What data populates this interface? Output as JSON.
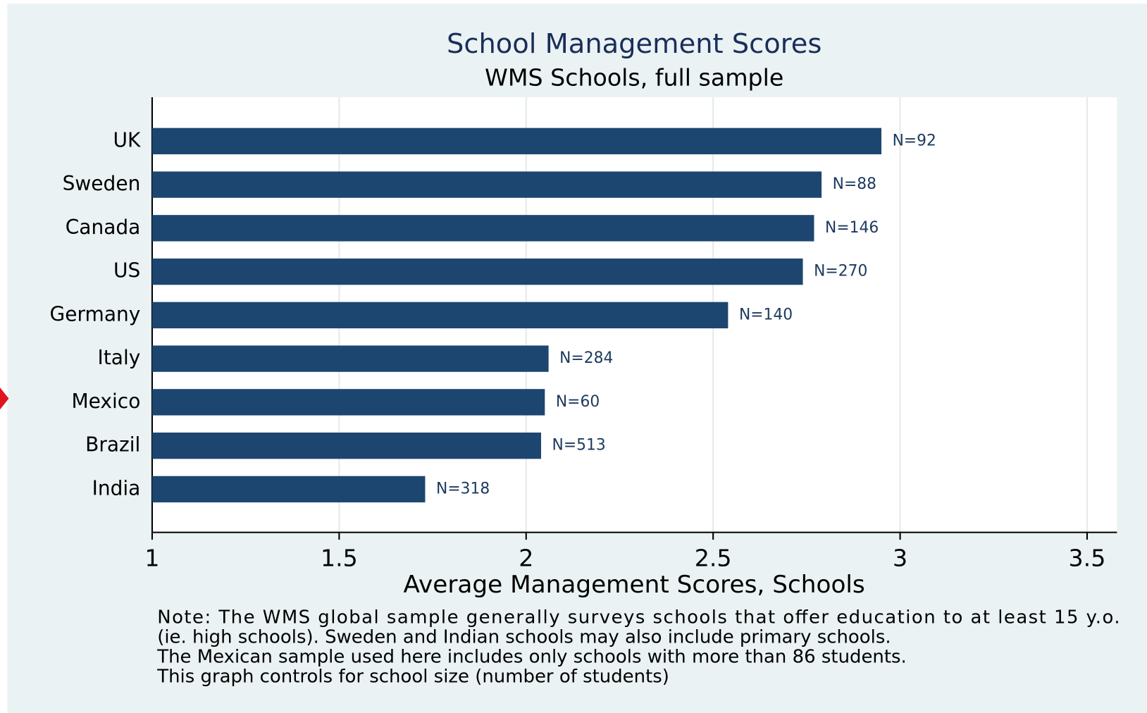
{
  "chart_data": {
    "type": "bar",
    "orientation": "horizontal",
    "title": "School Management Scores",
    "subtitle": "WMS Schools, full sample",
    "x_label": "Average Management Scores, Schools",
    "categories": [
      "UK",
      "Sweden",
      "Canada",
      "US",
      "Germany",
      "Italy",
      "Mexico",
      "Brazil",
      "India"
    ],
    "values": [
      2.95,
      2.79,
      2.77,
      2.74,
      2.54,
      2.06,
      2.05,
      2.04,
      1.73
    ],
    "annotations": [
      "N=92",
      "N=88",
      "N=146",
      "N=270",
      "N=140",
      "N=284",
      "N=60",
      "N=513",
      "N=318"
    ],
    "color": "#1c466f",
    "xlim": [
      1,
      3.58
    ],
    "xticks": [
      1,
      1.5,
      2,
      2.5,
      3,
      3.5
    ],
    "grid": true,
    "notes": [
      "Note: The WMS global sample generally surveys schools that offer education to at least 15 y.o.",
      "(ie. high schools). Sweden and Indian schools may also include primary schools.",
      "The Mexican sample used here includes only schools with more than 86 students.",
      "This graph controls for school size (number of students)"
    ]
  }
}
